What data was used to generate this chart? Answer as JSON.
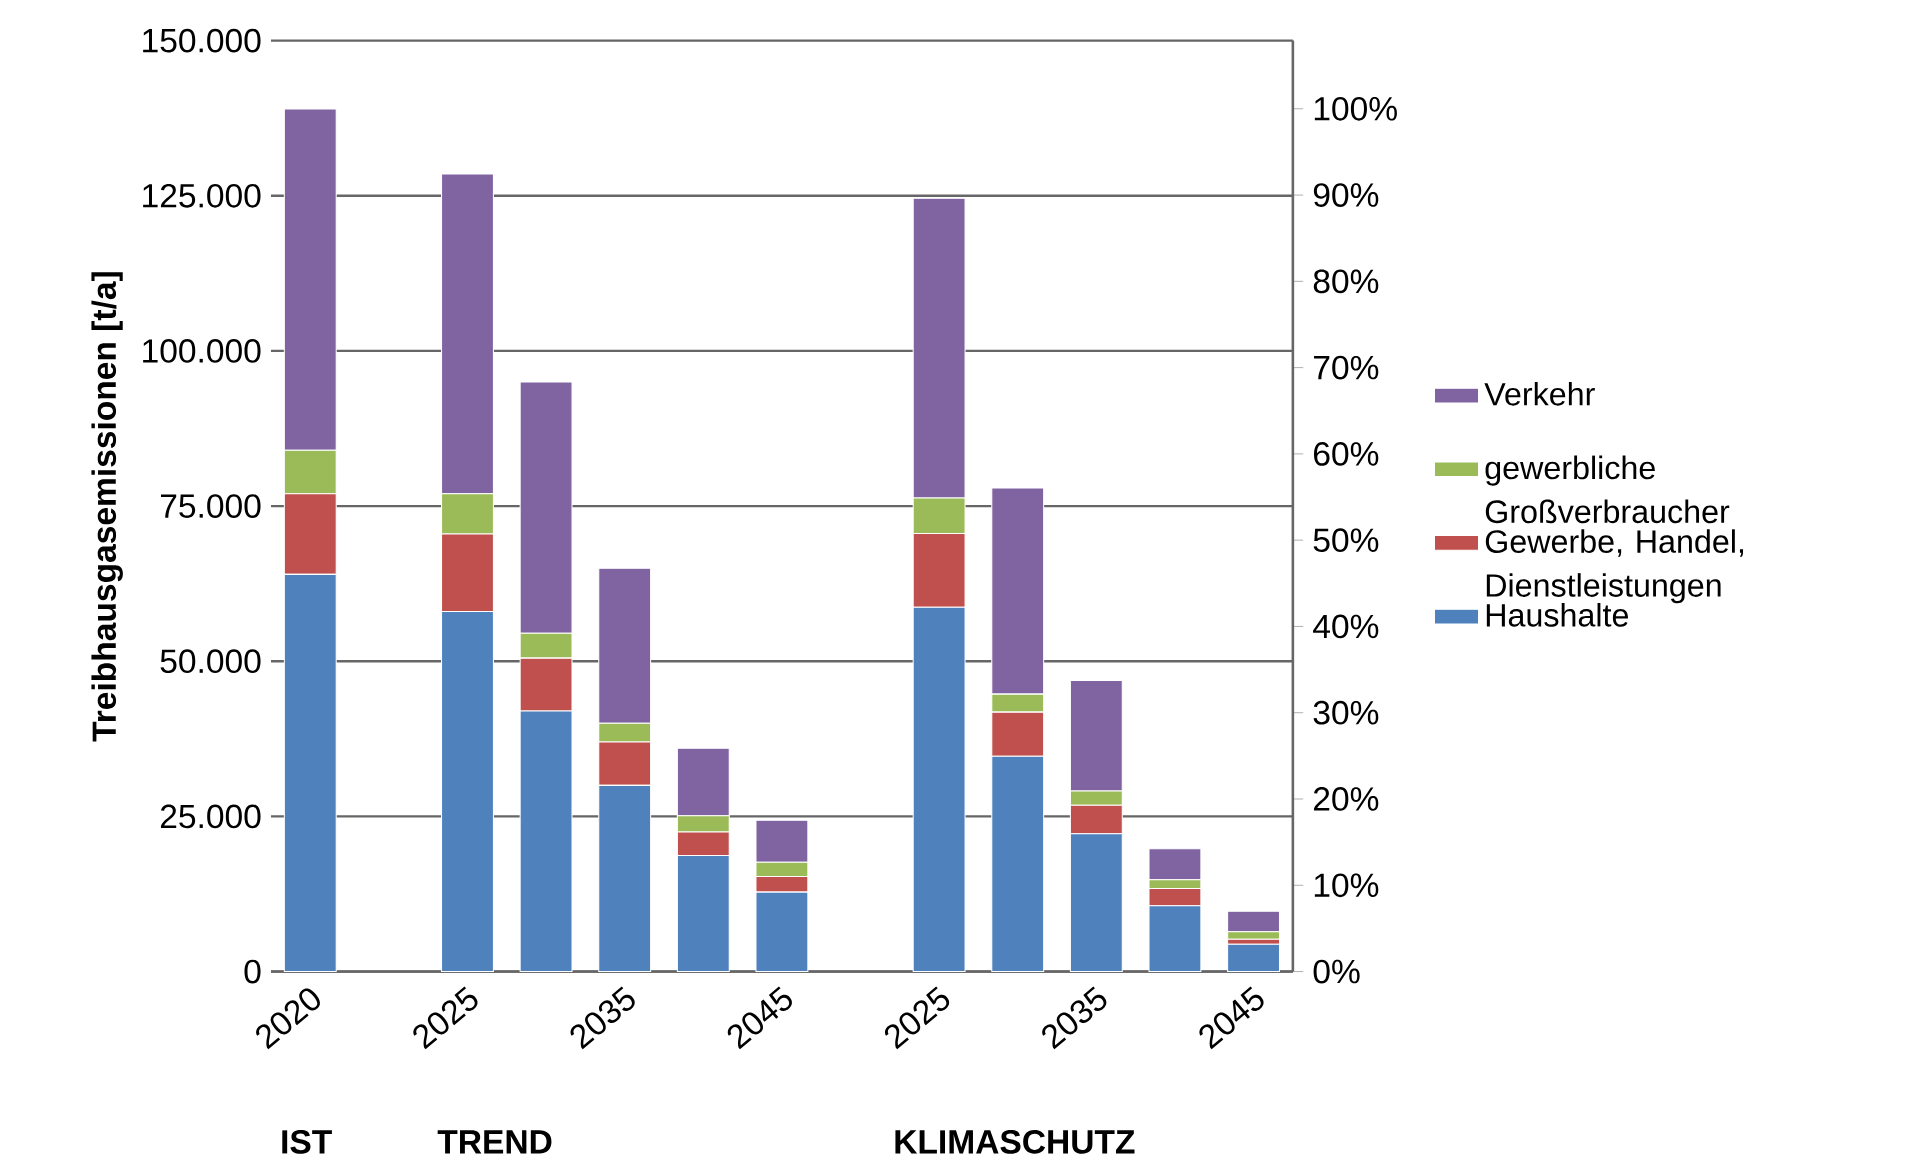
{
  "chart_data": {
    "type": "bar",
    "stacked": true,
    "ylabel": "Treibhausgasemissionen [t/a]",
    "categories": [
      "2020",
      null,
      "2025",
      null,
      "2035",
      null,
      "2045",
      null,
      "2025",
      null,
      "2035",
      null,
      "2045"
    ],
    "series": [
      {
        "name": "Haushalte",
        "color": "#4f81bd",
        "values": [
          64000,
          null,
          58000,
          42000,
          30000,
          18700,
          12800,
          null,
          58700,
          34700,
          22200,
          10600,
          4400
        ]
      },
      {
        "name": "Gewerbe, Handel, Dienstleistungen",
        "color": "#c0504d",
        "values": [
          13000,
          null,
          12500,
          8500,
          7000,
          3800,
          2500,
          null,
          11900,
          7100,
          4600,
          2800,
          800
        ]
      },
      {
        "name": "gewerbliche Großverbraucher",
        "color": "#9bbb59",
        "values": [
          7000,
          null,
          6500,
          4000,
          3000,
          2600,
          2300,
          null,
          5700,
          2900,
          2300,
          1400,
          1200
        ]
      },
      {
        "name": "Verkehr",
        "color": "#8064a2",
        "values": [
          55000,
          null,
          51500,
          40500,
          25000,
          10900,
          6800,
          null,
          48300,
          33200,
          17800,
          5000,
          3300
        ]
      }
    ],
    "ylim": [
      0,
      150000
    ],
    "yticks": [
      {
        "value": 0,
        "label": "0"
      },
      {
        "value": 25000,
        "label": "25.000"
      },
      {
        "value": 50000,
        "label": "50.000"
      },
      {
        "value": 75000,
        "label": "75.000"
      },
      {
        "value": 100000,
        "label": "100.000"
      },
      {
        "value": 125000,
        "label": "125.000"
      },
      {
        "value": 150000,
        "label": "150.000"
      }
    ],
    "y2lim": [
      0,
      107.9
    ],
    "y2ticks": [
      {
        "value": 0,
        "label": "0%"
      },
      {
        "value": 10,
        "label": "10%"
      },
      {
        "value": 20,
        "label": "20%"
      },
      {
        "value": 30,
        "label": "30%"
      },
      {
        "value": 40,
        "label": "40%"
      },
      {
        "value": 50,
        "label": "50%"
      },
      {
        "value": 60,
        "label": "60%"
      },
      {
        "value": 70,
        "label": "70%"
      },
      {
        "value": 80,
        "label": "80%"
      },
      {
        "value": 90,
        "label": "90%"
      },
      {
        "value": 100,
        "label": "100%"
      }
    ],
    "grid": "y",
    "legend": "right",
    "annotations": [
      "IST",
      "TREND",
      "KLIMASCHUTZ"
    ]
  }
}
